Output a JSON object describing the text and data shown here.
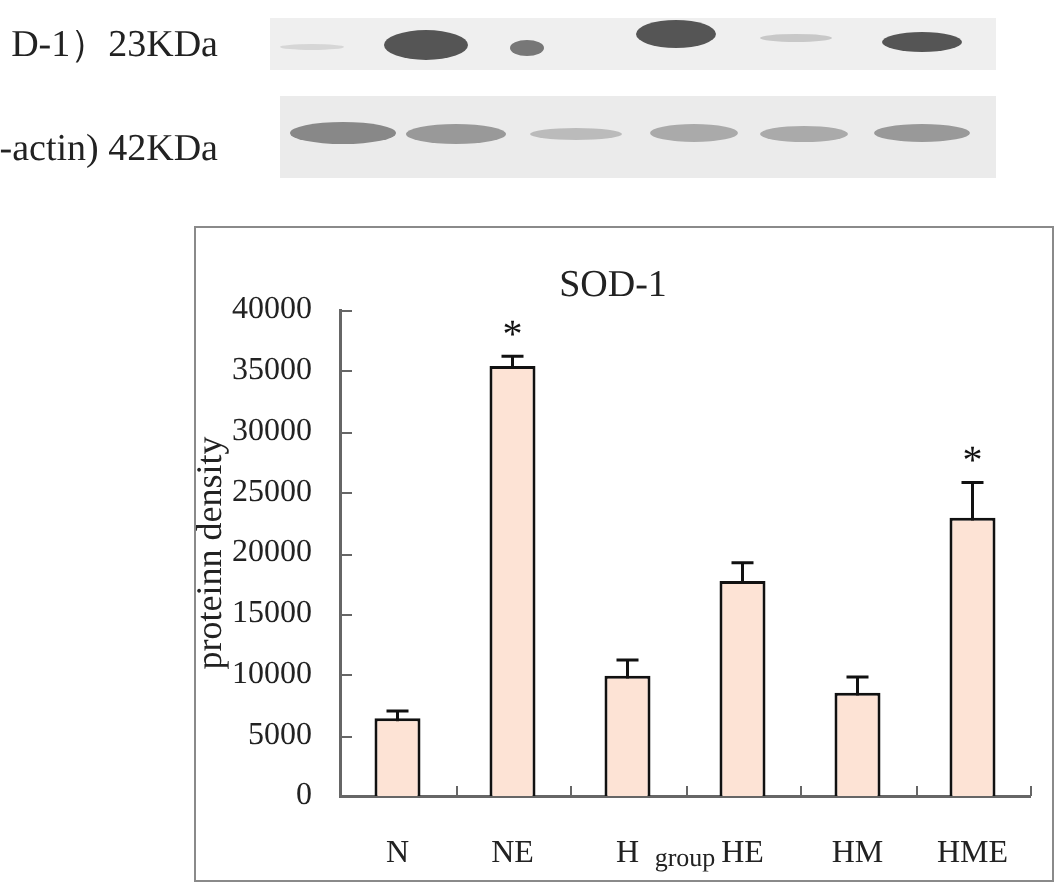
{
  "chart_data": {
    "type": "bar",
    "title": "SOD-1",
    "xlabel": "group",
    "ylabel": "proteinn density",
    "categories": [
      "N",
      "NE",
      "H",
      "HE",
      "HM",
      "HME"
    ],
    "values": [
      6400,
      35400,
      9900,
      17700,
      8500,
      22900
    ],
    "errors": [
      600,
      800,
      1300,
      1500,
      1300,
      2900
    ],
    "color": "#fde3d5",
    "ylim": [
      0,
      40000
    ],
    "yticks": [
      0,
      5000,
      10000,
      15000,
      20000,
      25000,
      30000,
      35000,
      40000
    ],
    "annotations": [
      "D-1）23KDa",
      "-actin) 42KDa",
      {
        "text": "*",
        "x": "NE",
        "y": 35400
      },
      {
        "text": "*",
        "x": "HME",
        "y": 22900
      }
    ]
  }
}
